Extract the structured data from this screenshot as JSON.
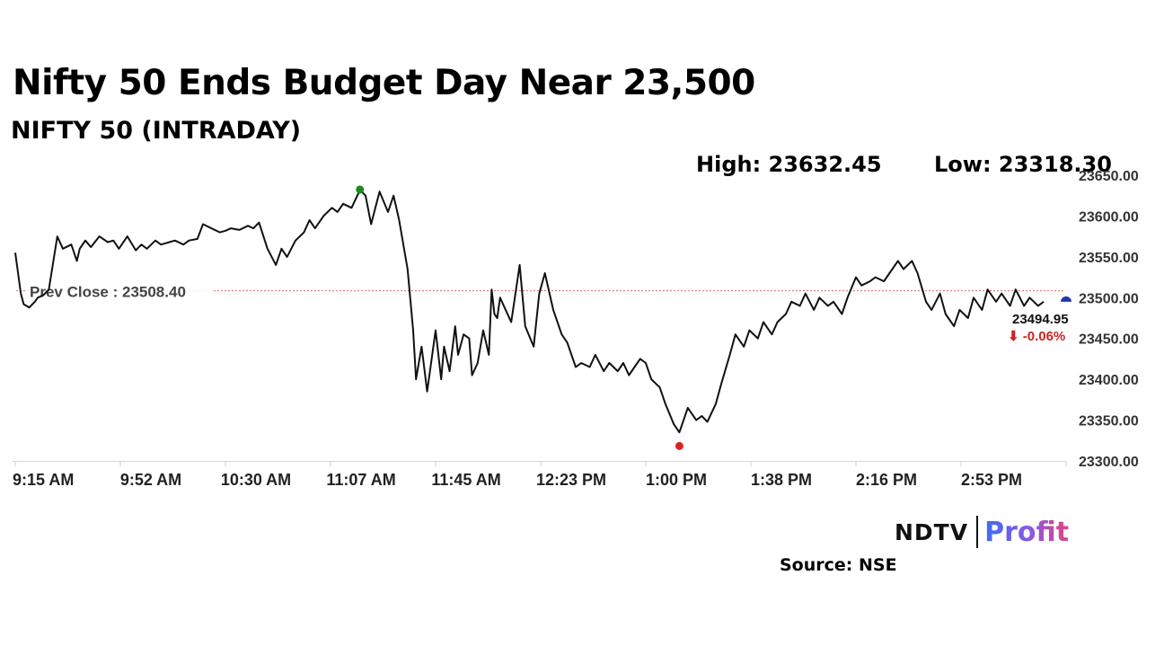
{
  "header": {
    "title": "Nifty 50 Ends Budget Day Near 23,500",
    "subtitle": "NIFTY 50 (INTRADAY)",
    "high_text": "High: 23632.45",
    "low_text": "Low: 23318.30"
  },
  "footer": {
    "logo_ndtv": "NDTV",
    "logo_profit": "Profit",
    "source": "Source: NSE"
  },
  "colors": {
    "line": "#111111",
    "prev_close_line": "#d96a6a",
    "high_marker": "#1d8a1d",
    "low_marker": "#e02020",
    "last_marker": "#1f3aa8",
    "change_negative": "#d32020"
  },
  "chart_data": {
    "type": "line",
    "title": "NIFTY 50 (INTRADAY)",
    "x_ticks": [
      "9:15 AM",
      "9:52 AM",
      "10:30 AM",
      "11:07 AM",
      "11:45 AM",
      "12:23 PM",
      "1:00 PM",
      "1:38 PM",
      "2:16 PM",
      "2:53 PM"
    ],
    "x_range_minutes": [
      555,
      930
    ],
    "y_ticks": [
      23300,
      23350,
      23400,
      23450,
      23500,
      23550,
      23600,
      23650
    ],
    "y_tick_labels": [
      "23300.00",
      "23350.00",
      "23400.00",
      "23450.00",
      "23500.00",
      "23550.00",
      "23600.00",
      "23650.00"
    ],
    "ylim": [
      23300,
      23650
    ],
    "prev_close": 23508.4,
    "prev_close_label": "Prev Close : 23508.40",
    "high": 23632.45,
    "low": 23318.3,
    "last_value": 23494.95,
    "last_label": "23494.95",
    "change_label": "⬇ -0.06%",
    "grid": false,
    "series": [
      {
        "time_minutes": [
          555,
          556,
          557,
          558,
          560,
          562,
          563,
          565,
          567,
          570,
          572,
          575,
          577,
          578,
          580,
          582,
          585,
          588,
          590,
          592,
          595,
          598,
          600,
          602,
          605,
          607,
          610,
          612,
          615,
          617,
          620,
          622,
          625,
          628,
          630,
          632,
          635,
          638,
          640,
          642,
          645,
          648,
          650,
          652,
          655,
          658,
          660,
          662,
          665,
          668,
          670,
          672,
          675,
          678,
          680,
          682,
          685,
          688,
          690,
          692,
          695,
          697,
          698,
          700,
          702,
          705,
          707,
          708,
          710,
          712,
          713,
          715,
          717,
          718,
          720,
          722,
          724,
          725,
          726,
          727,
          728,
          730,
          732,
          735,
          737,
          740,
          742,
          744,
          745,
          747,
          750,
          752,
          755,
          757,
          760,
          762,
          765,
          767,
          770,
          772,
          774,
          776,
          778,
          780,
          782,
          785,
          787,
          790,
          792,
          795,
          798,
          800,
          802,
          805,
          807,
          810,
          812,
          815,
          817,
          820,
          822,
          825,
          827,
          830,
          832,
          835,
          837,
          840,
          842,
          845,
          847,
          850,
          852,
          855,
          857,
          860,
          862,
          865,
          867,
          870,
          872,
          875,
          877,
          880,
          882,
          885,
          887,
          890,
          892,
          895,
          897,
          900,
          902,
          905,
          907,
          910,
          912,
          915,
          917,
          920,
          922
        ],
        "values": [
          23555,
          23530,
          23505,
          23492,
          23488,
          23495,
          23500,
          23503,
          23510,
          23575,
          23560,
          23565,
          23545,
          23560,
          23570,
          23562,
          23575,
          23568,
          23570,
          23560,
          23575,
          23558,
          23565,
          23560,
          23570,
          23565,
          23568,
          23570,
          23565,
          23570,
          23572,
          23590,
          23585,
          23580,
          23582,
          23585,
          23583,
          23588,
          23585,
          23592,
          23560,
          23540,
          23560,
          23550,
          23570,
          23580,
          23595,
          23585,
          23600,
          23610,
          23605,
          23615,
          23610,
          23632,
          23625,
          23590,
          23630,
          23605,
          23625,
          23595,
          23535,
          23460,
          23400,
          23440,
          23385,
          23460,
          23400,
          23440,
          23410,
          23465,
          23430,
          23455,
          23450,
          23405,
          23420,
          23460,
          23430,
          23510,
          23480,
          23475,
          23500,
          23485,
          23470,
          23540,
          23465,
          23440,
          23505,
          23530,
          23515,
          23485,
          23455,
          23445,
          23415,
          23420,
          23415,
          23430,
          23410,
          23420,
          23410,
          23420,
          23405,
          23415,
          23425,
          23420,
          23400,
          23390,
          23370,
          23345,
          23335,
          23365,
          23350,
          23355,
          23348,
          23370,
          23395,
          23430,
          23455,
          23440,
          23460,
          23450,
          23470,
          23455,
          23470,
          23480,
          23495,
          23490,
          23505,
          23485,
          23500,
          23490,
          23495,
          23480,
          23500,
          23525,
          23515,
          23520,
          23525,
          23520,
          23530,
          23545,
          23535,
          23545,
          23530,
          23495,
          23485,
          23505,
          23480,
          23465,
          23485,
          23475,
          23500,
          23485,
          23510,
          23495,
          23505,
          23490,
          23510,
          23490,
          23500,
          23490,
          23495
        ]
      }
    ]
  }
}
